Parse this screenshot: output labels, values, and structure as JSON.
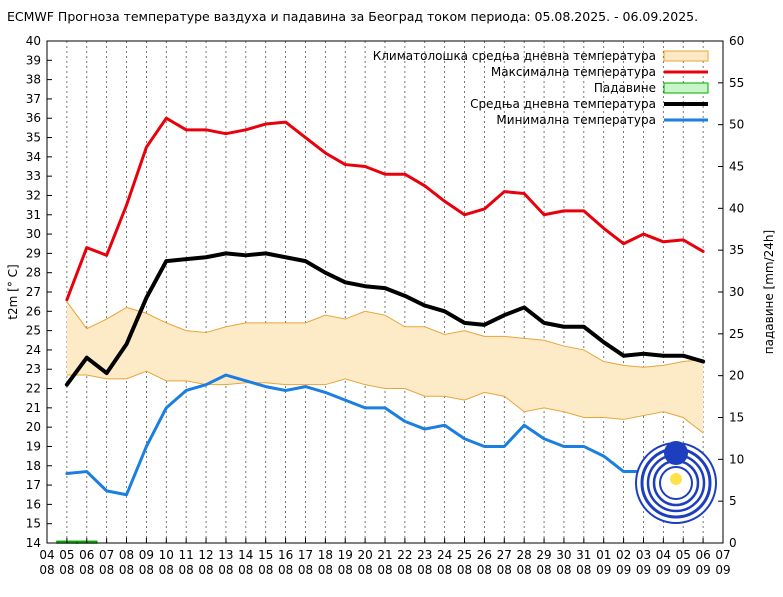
{
  "chart_data": {
    "type": "line",
    "title": "ECMWF Прогноза температуре ваздуха и падавина за Београд током периода: 05.08.2025. - 06.09.2025.",
    "ylabel_left": "t2m [° C]",
    "ylabel_right": "падавине [mm/24h]",
    "ylim": [
      14,
      40
    ],
    "ylim_right": [
      0,
      60
    ],
    "y_ticks": [
      "14",
      "15",
      "16",
      "17",
      "18",
      "19",
      "20",
      "21",
      "22",
      "23",
      "24",
      "25",
      "26",
      "27",
      "28",
      "29",
      "30",
      "31",
      "32",
      "33",
      "34",
      "35",
      "36",
      "37",
      "38",
      "39",
      "40"
    ],
    "y2_ticks": [
      "0",
      "5",
      "10",
      "15",
      "20",
      "25",
      "30",
      "35",
      "40",
      "45",
      "50",
      "55",
      "60"
    ],
    "x_ticks": [
      {
        "day": "04",
        "month": "08"
      },
      {
        "day": "05",
        "month": "08"
      },
      {
        "day": "06",
        "month": "08"
      },
      {
        "day": "07",
        "month": "08"
      },
      {
        "day": "08",
        "month": "08"
      },
      {
        "day": "09",
        "month": "08"
      },
      {
        "day": "10",
        "month": "08"
      },
      {
        "day": "11",
        "month": "08"
      },
      {
        "day": "12",
        "month": "08"
      },
      {
        "day": "13",
        "month": "08"
      },
      {
        "day": "14",
        "month": "08"
      },
      {
        "day": "15",
        "month": "08"
      },
      {
        "day": "16",
        "month": "08"
      },
      {
        "day": "17",
        "month": "08"
      },
      {
        "day": "18",
        "month": "08"
      },
      {
        "day": "19",
        "month": "08"
      },
      {
        "day": "20",
        "month": "08"
      },
      {
        "day": "21",
        "month": "08"
      },
      {
        "day": "22",
        "month": "08"
      },
      {
        "day": "23",
        "month": "08"
      },
      {
        "day": "24",
        "month": "08"
      },
      {
        "day": "25",
        "month": "08"
      },
      {
        "day": "26",
        "month": "08"
      },
      {
        "day": "27",
        "month": "08"
      },
      {
        "day": "28",
        "month": "08"
      },
      {
        "day": "29",
        "month": "08"
      },
      {
        "day": "30",
        "month": "08"
      },
      {
        "day": "31",
        "month": "08"
      },
      {
        "day": "01",
        "month": "09"
      },
      {
        "day": "02",
        "month": "09"
      },
      {
        "day": "03",
        "month": "09"
      },
      {
        "day": "04",
        "month": "09"
      },
      {
        "day": "05",
        "month": "09"
      },
      {
        "day": "06",
        "month": "09"
      },
      {
        "day": "07",
        "month": "09"
      }
    ],
    "x_start_day": 1,
    "legend": [
      {
        "label": "Климатолошка средња дневна температура",
        "color": "#fce8c3",
        "stroke": "#e8a43a",
        "kind": "band"
      },
      {
        "label": "Максимална температура",
        "color": "#e8000b",
        "kind": "line"
      },
      {
        "label": "Падавине",
        "color": "#c8f5c8",
        "stroke": "#00a800",
        "kind": "box"
      },
      {
        "label": "Средња дневна температура",
        "color": "#000000",
        "kind": "line"
      },
      {
        "label": "Минимална температура",
        "color": "#1a7fe0",
        "kind": "line"
      }
    ],
    "series": [
      {
        "name": "Максимална температура",
        "color": "#e8000b",
        "width": 3,
        "values": [
          [
            1,
            26.6
          ],
          [
            2,
            29.3
          ],
          [
            3,
            28.9
          ],
          [
            4,
            31.5
          ],
          [
            5,
            34.5
          ],
          [
            6,
            36.0
          ],
          [
            7,
            35.4
          ],
          [
            8,
            35.4
          ],
          [
            9,
            35.2
          ],
          [
            10,
            35.4
          ],
          [
            11,
            35.7
          ],
          [
            12,
            35.8
          ],
          [
            13,
            35.0
          ],
          [
            14,
            34.2
          ],
          [
            15,
            33.6
          ],
          [
            16,
            33.5
          ],
          [
            17,
            33.1
          ],
          [
            18,
            33.1
          ],
          [
            19,
            32.5
          ],
          [
            20,
            31.7
          ],
          [
            21,
            31.0
          ],
          [
            22,
            31.3
          ],
          [
            23,
            32.2
          ],
          [
            24,
            32.1
          ],
          [
            25,
            31.0
          ],
          [
            26,
            31.2
          ],
          [
            27,
            31.2
          ],
          [
            28,
            30.3
          ],
          [
            29,
            29.5
          ],
          [
            30,
            30.0
          ],
          [
            31,
            29.6
          ],
          [
            32,
            29.7
          ],
          [
            33,
            29.1
          ]
        ]
      },
      {
        "name": "Средња дневна температура",
        "color": "#000000",
        "width": 4,
        "values": [
          [
            1,
            22.2
          ],
          [
            2,
            23.6
          ],
          [
            3,
            22.8
          ],
          [
            4,
            24.3
          ],
          [
            5,
            26.7
          ],
          [
            6,
            28.6
          ],
          [
            7,
            28.7
          ],
          [
            8,
            28.8
          ],
          [
            9,
            29.0
          ],
          [
            10,
            28.9
          ],
          [
            11,
            29.0
          ],
          [
            12,
            28.8
          ],
          [
            13,
            28.6
          ],
          [
            14,
            28.0
          ],
          [
            15,
            27.5
          ],
          [
            16,
            27.3
          ],
          [
            17,
            27.2
          ],
          [
            18,
            26.8
          ],
          [
            19,
            26.3
          ],
          [
            20,
            26.0
          ],
          [
            21,
            25.4
          ],
          [
            22,
            25.3
          ],
          [
            23,
            25.8
          ],
          [
            24,
            26.2
          ],
          [
            25,
            25.4
          ],
          [
            26,
            25.2
          ],
          [
            27,
            25.2
          ],
          [
            28,
            24.4
          ],
          [
            29,
            23.7
          ],
          [
            30,
            23.8
          ],
          [
            31,
            23.7
          ],
          [
            32,
            23.7
          ],
          [
            33,
            23.4
          ]
        ]
      },
      {
        "name": "Минимална температура",
        "color": "#1a7fe0",
        "width": 3,
        "values": [
          [
            1,
            17.6
          ],
          [
            2,
            17.7
          ],
          [
            3,
            16.7
          ],
          [
            4,
            16.5
          ],
          [
            5,
            19.0
          ],
          [
            6,
            21.0
          ],
          [
            7,
            21.9
          ],
          [
            8,
            22.2
          ],
          [
            9,
            22.7
          ],
          [
            10,
            22.4
          ],
          [
            11,
            22.1
          ],
          [
            12,
            21.9
          ],
          [
            13,
            22.1
          ],
          [
            14,
            21.8
          ],
          [
            15,
            21.4
          ],
          [
            16,
            21.0
          ],
          [
            17,
            21.0
          ],
          [
            18,
            20.3
          ],
          [
            19,
            19.9
          ],
          [
            20,
            20.1
          ],
          [
            21,
            19.4
          ],
          [
            22,
            19.0
          ],
          [
            23,
            19.0
          ],
          [
            24,
            20.1
          ],
          [
            25,
            19.4
          ],
          [
            26,
            19.0
          ],
          [
            27,
            19.0
          ],
          [
            28,
            18.5
          ],
          [
            29,
            17.7
          ],
          [
            30,
            17.7
          ]
        ]
      }
    ],
    "climatology_band": {
      "upper": [
        [
          1,
          26.5
        ],
        [
          2,
          25.1
        ],
        [
          3,
          25.6
        ],
        [
          4,
          26.2
        ],
        [
          5,
          25.9
        ],
        [
          6,
          25.4
        ],
        [
          7,
          25.0
        ],
        [
          8,
          24.9
        ],
        [
          9,
          25.2
        ],
        [
          10,
          25.4
        ],
        [
          11,
          25.4
        ],
        [
          12,
          25.4
        ],
        [
          13,
          25.4
        ],
        [
          14,
          25.8
        ],
        [
          15,
          25.6
        ],
        [
          16,
          26.0
        ],
        [
          17,
          25.8
        ],
        [
          18,
          25.2
        ],
        [
          19,
          25.2
        ],
        [
          20,
          24.8
        ],
        [
          21,
          25.0
        ],
        [
          22,
          24.7
        ],
        [
          23,
          24.7
        ],
        [
          24,
          24.6
        ],
        [
          25,
          24.5
        ],
        [
          26,
          24.2
        ],
        [
          27,
          24.0
        ],
        [
          28,
          23.4
        ],
        [
          29,
          23.2
        ],
        [
          30,
          23.1
        ],
        [
          31,
          23.2
        ],
        [
          32,
          23.4
        ],
        [
          33,
          23.5
        ]
      ],
      "lower": [
        [
          1,
          22.7
        ],
        [
          2,
          22.7
        ],
        [
          3,
          22.5
        ],
        [
          4,
          22.5
        ],
        [
          5,
          22.9
        ],
        [
          6,
          22.4
        ],
        [
          7,
          22.4
        ],
        [
          8,
          22.2
        ],
        [
          9,
          22.2
        ],
        [
          10,
          22.3
        ],
        [
          11,
          22.3
        ],
        [
          12,
          22.2
        ],
        [
          13,
          22.2
        ],
        [
          14,
          22.2
        ],
        [
          15,
          22.5
        ],
        [
          16,
          22.2
        ],
        [
          17,
          22.0
        ],
        [
          18,
          22.0
        ],
        [
          19,
          21.6
        ],
        [
          20,
          21.6
        ],
        [
          21,
          21.4
        ],
        [
          22,
          21.8
        ],
        [
          23,
          21.6
        ],
        [
          24,
          20.8
        ],
        [
          25,
          21.0
        ],
        [
          26,
          20.8
        ],
        [
          27,
          20.5
        ],
        [
          28,
          20.5
        ],
        [
          29,
          20.4
        ],
        [
          30,
          20.6
        ],
        [
          31,
          20.8
        ],
        [
          32,
          20.5
        ],
        [
          33,
          19.7
        ]
      ],
      "fill": "#fdebc8",
      "stroke": "#e8a43a"
    },
    "precipitation": [
      [
        1,
        0.2
      ],
      [
        2,
        0.2
      ]
    ]
  }
}
